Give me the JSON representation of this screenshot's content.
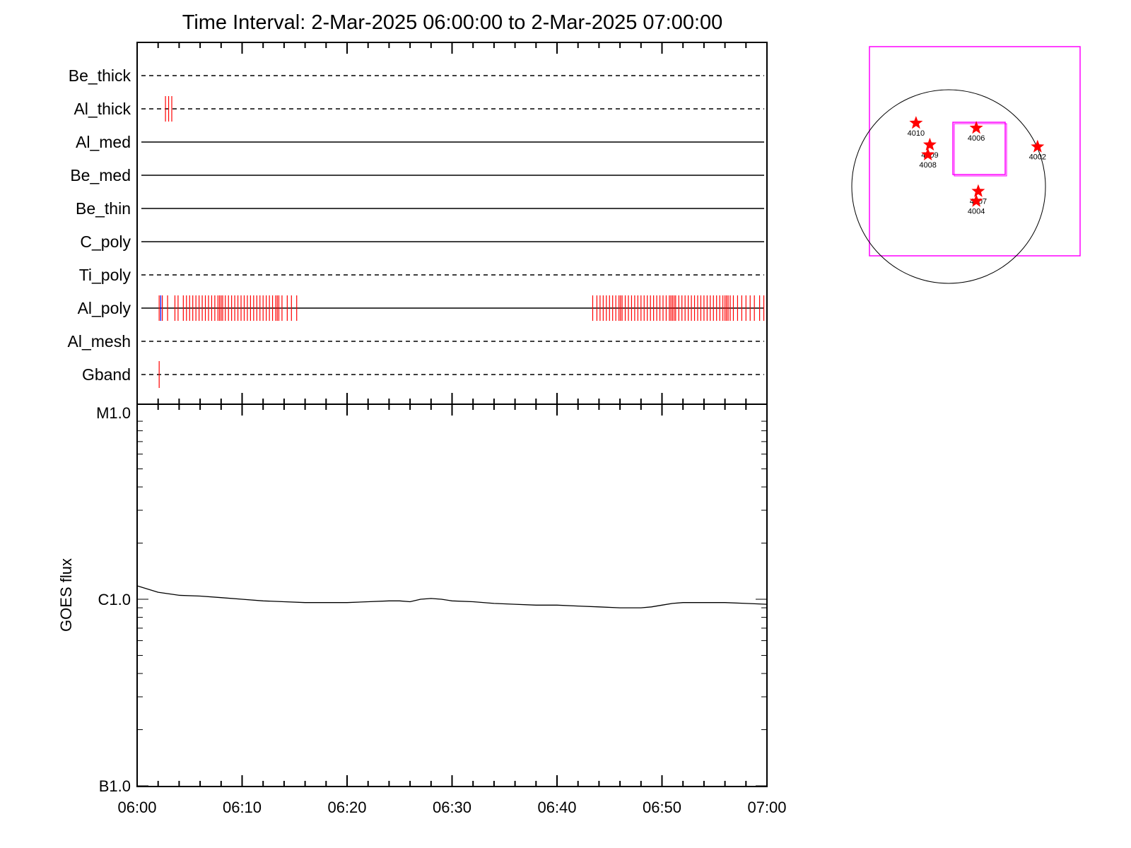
{
  "title": "Time Interval:  2-Mar-2025 06:00:00 to  2-Mar-2025 07:00:00",
  "chart_data": [
    {
      "type": "event-timeline",
      "x_range": [
        "06:00",
        "07:00"
      ],
      "rows": [
        {
          "name": "Be_thick",
          "style": "dashed",
          "events": []
        },
        {
          "name": "Al_thick",
          "style": "dashed",
          "events": [
            {
              "t": 2.7,
              "color": "red"
            },
            {
              "t": 3.0,
              "color": "red"
            },
            {
              "t": 3.3,
              "color": "red"
            }
          ]
        },
        {
          "name": "Al_med",
          "style": "solid",
          "events": []
        },
        {
          "name": "Be_med",
          "style": "solid",
          "events": []
        },
        {
          "name": "Be_thin",
          "style": "solid",
          "events": []
        },
        {
          "name": "C_poly",
          "style": "solid",
          "events": []
        },
        {
          "name": "Ti_poly",
          "style": "dashed",
          "events": []
        },
        {
          "name": "Al_poly",
          "style": "solid",
          "events": [
            {
              "t": 2.1,
              "color": "red"
            },
            {
              "t": 2.25,
              "color": "blue"
            },
            {
              "t": 2.4,
              "color": "red"
            },
            {
              "t": 2.9,
              "color": "red"
            },
            {
              "t": 3.6,
              "color": "red"
            },
            {
              "t": 3.9,
              "color": "red"
            },
            {
              "t": 4.4,
              "color": "red"
            },
            {
              "t": 4.7,
              "color": "red"
            },
            {
              "t": 5.0,
              "color": "red"
            },
            {
              "t": 5.3,
              "color": "red"
            },
            {
              "t": 5.6,
              "color": "red"
            },
            {
              "t": 5.9,
              "color": "red"
            },
            {
              "t": 6.2,
              "color": "red"
            },
            {
              "t": 6.5,
              "color": "red"
            },
            {
              "t": 6.8,
              "color": "red"
            },
            {
              "t": 7.1,
              "color": "red"
            },
            {
              "t": 7.4,
              "color": "red"
            },
            {
              "t": 7.7,
              "color": "red"
            },
            {
              "t": 7.85,
              "color": "red"
            },
            {
              "t": 8.0,
              "color": "red"
            },
            {
              "t": 8.15,
              "color": "red"
            },
            {
              "t": 8.4,
              "color": "red"
            },
            {
              "t": 8.7,
              "color": "red"
            },
            {
              "t": 9.0,
              "color": "red"
            },
            {
              "t": 9.3,
              "color": "red"
            },
            {
              "t": 9.6,
              "color": "red"
            },
            {
              "t": 9.9,
              "color": "red"
            },
            {
              "t": 10.2,
              "color": "red"
            },
            {
              "t": 10.5,
              "color": "red"
            },
            {
              "t": 10.8,
              "color": "red"
            },
            {
              "t": 11.1,
              "color": "red"
            },
            {
              "t": 11.4,
              "color": "red"
            },
            {
              "t": 11.7,
              "color": "red"
            },
            {
              "t": 12.0,
              "color": "red"
            },
            {
              "t": 12.3,
              "color": "red"
            },
            {
              "t": 12.6,
              "color": "red"
            },
            {
              "t": 12.9,
              "color": "red"
            },
            {
              "t": 13.2,
              "color": "red"
            },
            {
              "t": 13.35,
              "color": "red"
            },
            {
              "t": 13.5,
              "color": "red"
            },
            {
              "t": 13.8,
              "color": "red"
            },
            {
              "t": 14.3,
              "color": "red"
            },
            {
              "t": 14.7,
              "color": "red"
            },
            {
              "t": 15.2,
              "color": "red"
            },
            {
              "t": 43.4,
              "color": "red"
            },
            {
              "t": 43.8,
              "color": "red"
            },
            {
              "t": 44.1,
              "color": "red"
            },
            {
              "t": 44.4,
              "color": "red"
            },
            {
              "t": 44.7,
              "color": "red"
            },
            {
              "t": 45.0,
              "color": "red"
            },
            {
              "t": 45.3,
              "color": "red"
            },
            {
              "t": 45.6,
              "color": "red"
            },
            {
              "t": 45.9,
              "color": "red"
            },
            {
              "t": 46.05,
              "color": "red"
            },
            {
              "t": 46.2,
              "color": "red"
            },
            {
              "t": 46.5,
              "color": "red"
            },
            {
              "t": 46.8,
              "color": "red"
            },
            {
              "t": 47.1,
              "color": "red"
            },
            {
              "t": 47.4,
              "color": "red"
            },
            {
              "t": 47.7,
              "color": "red"
            },
            {
              "t": 48.0,
              "color": "red"
            },
            {
              "t": 48.3,
              "color": "red"
            },
            {
              "t": 48.6,
              "color": "red"
            },
            {
              "t": 48.9,
              "color": "red"
            },
            {
              "t": 49.2,
              "color": "red"
            },
            {
              "t": 49.5,
              "color": "red"
            },
            {
              "t": 49.8,
              "color": "red"
            },
            {
              "t": 50.1,
              "color": "red"
            },
            {
              "t": 50.4,
              "color": "red"
            },
            {
              "t": 50.7,
              "color": "red"
            },
            {
              "t": 50.85,
              "color": "red"
            },
            {
              "t": 51.0,
              "color": "red"
            },
            {
              "t": 51.15,
              "color": "red"
            },
            {
              "t": 51.3,
              "color": "red"
            },
            {
              "t": 51.6,
              "color": "red"
            },
            {
              "t": 51.9,
              "color": "red"
            },
            {
              "t": 52.2,
              "color": "red"
            },
            {
              "t": 52.5,
              "color": "red"
            },
            {
              "t": 52.8,
              "color": "red"
            },
            {
              "t": 53.1,
              "color": "red"
            },
            {
              "t": 53.4,
              "color": "red"
            },
            {
              "t": 53.7,
              "color": "red"
            },
            {
              "t": 54.0,
              "color": "red"
            },
            {
              "t": 54.3,
              "color": "red"
            },
            {
              "t": 54.6,
              "color": "red"
            },
            {
              "t": 54.9,
              "color": "red"
            },
            {
              "t": 55.2,
              "color": "red"
            },
            {
              "t": 55.5,
              "color": "red"
            },
            {
              "t": 55.8,
              "color": "red"
            },
            {
              "t": 56.0,
              "color": "red"
            },
            {
              "t": 56.15,
              "color": "red"
            },
            {
              "t": 56.3,
              "color": "red"
            },
            {
              "t": 56.5,
              "color": "red"
            },
            {
              "t": 56.8,
              "color": "red"
            },
            {
              "t": 57.2,
              "color": "red"
            },
            {
              "t": 57.6,
              "color": "red"
            },
            {
              "t": 58.0,
              "color": "red"
            },
            {
              "t": 58.4,
              "color": "red"
            },
            {
              "t": 58.8,
              "color": "red"
            },
            {
              "t": 59.3,
              "color": "red"
            },
            {
              "t": 59.7,
              "color": "red"
            }
          ]
        },
        {
          "name": "Al_mesh",
          "style": "dashed",
          "events": []
        },
        {
          "name": "Gband",
          "style": "dashed",
          "events": [
            {
              "t": 2.1,
              "color": "red"
            }
          ]
        }
      ]
    },
    {
      "type": "line",
      "ylabel": "GOES flux",
      "yscale": "log",
      "ylim": [
        1e-07,
        1e-05
      ],
      "yticks": [
        {
          "value": 1e-05,
          "label": "M1.0"
        },
        {
          "value": 1e-06,
          "label": "C1.0"
        },
        {
          "value": 1e-07,
          "label": "B1.0"
        }
      ],
      "xticks": [
        "06:00",
        "06:10",
        "06:20",
        "06:30",
        "06:40",
        "06:50",
        "07:00"
      ],
      "x_range": [
        "06:00",
        "07:00"
      ],
      "series": [
        {
          "x": [
            "06:00",
            "06:02",
            "06:04",
            "06:06",
            "06:08",
            "06:10",
            "06:12",
            "06:14",
            "06:16",
            "06:18",
            "06:20",
            "06:22",
            "06:24",
            "06:25",
            "06:26",
            "06:27",
            "06:28",
            "06:29",
            "06:30",
            "06:32",
            "06:34",
            "06:36",
            "06:38",
            "06:40",
            "06:42",
            "06:44",
            "06:46",
            "06:47",
            "06:48",
            "06:49",
            "06:50",
            "06:51",
            "06:52",
            "06:54",
            "06:56",
            "06:58",
            "07:00"
          ],
          "values": [
            1.18e-06,
            1.09e-06,
            1.05e-06,
            1.04e-06,
            1.02e-06,
            1e-06,
            9.8e-07,
            9.7e-07,
            9.6e-07,
            9.6e-07,
            9.6e-07,
            9.7e-07,
            9.8e-07,
            9.8e-07,
            9.7e-07,
            1e-06,
            1.01e-06,
            1e-06,
            9.8e-07,
            9.7e-07,
            9.5e-07,
            9.4e-07,
            9.3e-07,
            9.3e-07,
            9.2e-07,
            9.1e-07,
            9e-07,
            9e-07,
            9e-07,
            9.1e-07,
            9.3e-07,
            9.5e-07,
            9.6e-07,
            9.6e-07,
            9.6e-07,
            9.5e-07,
            9.4e-07
          ]
        }
      ]
    }
  ],
  "sun_map": {
    "fov_color": "#ff00ff",
    "star_color": "#ff0000",
    "regions": [
      {
        "label": "4010",
        "x": -330,
        "y": 600
      },
      {
        "label": "4009",
        "x": -190,
        "y": 380
      },
      {
        "label": "4008",
        "x": -210,
        "y": 280
      },
      {
        "label": "4006",
        "x": 280,
        "y": 550
      },
      {
        "label": "4002",
        "x": 900,
        "y": 360
      },
      {
        "label": "4007",
        "x": 300,
        "y": -90
      },
      {
        "label": "4004",
        "x": 280,
        "y": -190
      }
    ]
  }
}
